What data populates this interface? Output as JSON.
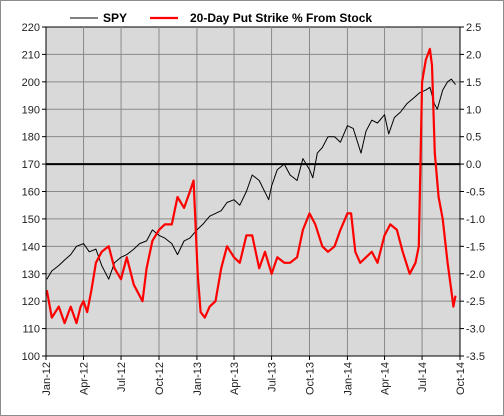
{
  "chart_data": {
    "type": "line",
    "title": "",
    "xlabel": "",
    "ylabel": "",
    "y2label": "",
    "ylim": [
      100,
      220
    ],
    "y2lim": [
      -3.5,
      2.5
    ],
    "yticks": [
      100,
      110,
      120,
      130,
      140,
      150,
      160,
      170,
      180,
      190,
      200,
      210,
      220
    ],
    "y2ticks": [
      -3.5,
      -3.0,
      -2.5,
      -2.0,
      -1.5,
      -1.0,
      -0.5,
      0.0,
      0.5,
      1.0,
      1.5,
      2.0,
      2.5
    ],
    "y2tick_labels": [
      "-3.5",
      "-3.0",
      "-2.5",
      "-2.0",
      "-1.5",
      "-1.0",
      "-0.5",
      "0.0",
      "0.5",
      "1.0",
      "1.5",
      "2.0",
      "2.5"
    ],
    "xlim": [
      "2012-01-01",
      "2014-10-01"
    ],
    "xticks": [
      {
        "date": "2012-01-01",
        "label": "Jan-12"
      },
      {
        "date": "2012-04-01",
        "label": "Apr-12"
      },
      {
        "date": "2012-07-01",
        "label": "Jul-12"
      },
      {
        "date": "2012-10-01",
        "label": "Oct-12"
      },
      {
        "date": "2013-01-01",
        "label": "Jan-13"
      },
      {
        "date": "2013-04-01",
        "label": "Apr-13"
      },
      {
        "date": "2013-07-01",
        "label": "Jul-13"
      },
      {
        "date": "2013-10-01",
        "label": "Oct-13"
      },
      {
        "date": "2014-01-01",
        "label": "Jan-14"
      },
      {
        "date": "2014-04-01",
        "label": "Apr-14"
      },
      {
        "date": "2014-07-01",
        "label": "Jul-14"
      },
      {
        "date": "2014-10-01",
        "label": "Oct-14"
      }
    ],
    "grid": true,
    "legend_position": "top",
    "reference_line": {
      "axis": "y2",
      "value": 0.0
    },
    "series": [
      {
        "name": "SPY",
        "axis": "y",
        "color": "#000000",
        "points": [
          [
            "2012-01-03",
            128
          ],
          [
            "2012-01-15",
            131
          ],
          [
            "2012-02-01",
            133
          ],
          [
            "2012-02-15",
            135
          ],
          [
            "2012-03-01",
            137
          ],
          [
            "2012-03-15",
            140
          ],
          [
            "2012-04-01",
            141
          ],
          [
            "2012-04-15",
            138
          ],
          [
            "2012-05-01",
            139
          ],
          [
            "2012-05-15",
            133
          ],
          [
            "2012-06-01",
            128
          ],
          [
            "2012-06-15",
            134
          ],
          [
            "2012-07-01",
            136
          ],
          [
            "2012-07-15",
            137
          ],
          [
            "2012-08-01",
            139
          ],
          [
            "2012-08-15",
            141
          ],
          [
            "2012-09-01",
            142
          ],
          [
            "2012-09-15",
            146
          ],
          [
            "2012-10-01",
            144
          ],
          [
            "2012-10-15",
            143
          ],
          [
            "2012-11-01",
            141
          ],
          [
            "2012-11-15",
            137
          ],
          [
            "2012-12-01",
            142
          ],
          [
            "2012-12-15",
            143
          ],
          [
            "2013-01-01",
            146
          ],
          [
            "2013-01-15",
            148
          ],
          [
            "2013-02-01",
            151
          ],
          [
            "2013-02-15",
            152
          ],
          [
            "2013-03-01",
            153
          ],
          [
            "2013-03-15",
            156
          ],
          [
            "2013-04-01",
            157
          ],
          [
            "2013-04-15",
            155
          ],
          [
            "2013-05-01",
            160
          ],
          [
            "2013-05-15",
            166
          ],
          [
            "2013-06-01",
            164
          ],
          [
            "2013-06-24",
            157
          ],
          [
            "2013-07-01",
            162
          ],
          [
            "2013-07-15",
            168
          ],
          [
            "2013-08-01",
            170
          ],
          [
            "2013-08-15",
            166
          ],
          [
            "2013-09-01",
            164
          ],
          [
            "2013-09-15",
            172
          ],
          [
            "2013-10-01",
            168
          ],
          [
            "2013-10-09",
            165
          ],
          [
            "2013-10-20",
            174
          ],
          [
            "2013-11-01",
            176
          ],
          [
            "2013-11-15",
            180
          ],
          [
            "2013-12-01",
            180
          ],
          [
            "2013-12-15",
            178
          ],
          [
            "2014-01-01",
            184
          ],
          [
            "2014-01-15",
            183
          ],
          [
            "2014-02-03",
            174
          ],
          [
            "2014-02-15",
            182
          ],
          [
            "2014-03-01",
            186
          ],
          [
            "2014-03-15",
            185
          ],
          [
            "2014-04-01",
            188
          ],
          [
            "2014-04-11",
            181
          ],
          [
            "2014-04-25",
            187
          ],
          [
            "2014-05-10",
            189
          ],
          [
            "2014-05-25",
            192
          ],
          [
            "2014-06-10",
            194
          ],
          [
            "2014-06-25",
            196
          ],
          [
            "2014-07-10",
            197
          ],
          [
            "2014-07-20",
            198
          ],
          [
            "2014-07-31",
            192
          ],
          [
            "2014-08-07",
            190
          ],
          [
            "2014-08-20",
            197
          ],
          [
            "2014-09-01",
            200
          ],
          [
            "2014-09-10",
            201
          ],
          [
            "2014-09-20",
            199
          ]
        ]
      },
      {
        "name": "20-Day Put Strike % From Stock",
        "axis": "y2",
        "color": "#ff0000",
        "points": [
          [
            "2012-01-03",
            -2.3
          ],
          [
            "2012-01-15",
            -2.8
          ],
          [
            "2012-02-01",
            -2.6
          ],
          [
            "2012-02-15",
            -2.9
          ],
          [
            "2012-03-01",
            -2.6
          ],
          [
            "2012-03-15",
            -2.9
          ],
          [
            "2012-03-25",
            -2.6
          ],
          [
            "2012-04-01",
            -2.5
          ],
          [
            "2012-04-10",
            -2.7
          ],
          [
            "2012-04-20",
            -2.3
          ],
          [
            "2012-05-01",
            -1.8
          ],
          [
            "2012-05-15",
            -1.6
          ],
          [
            "2012-06-01",
            -1.5
          ],
          [
            "2012-06-15",
            -1.9
          ],
          [
            "2012-07-01",
            -2.1
          ],
          [
            "2012-07-15",
            -1.7
          ],
          [
            "2012-08-01",
            -2.2
          ],
          [
            "2012-08-15",
            -2.4
          ],
          [
            "2012-08-22",
            -2.5
          ],
          [
            "2012-09-01",
            -1.9
          ],
          [
            "2012-09-15",
            -1.4
          ],
          [
            "2012-10-01",
            -1.2
          ],
          [
            "2012-10-15",
            -1.1
          ],
          [
            "2012-11-01",
            -1.1
          ],
          [
            "2012-11-15",
            -0.6
          ],
          [
            "2012-12-01",
            -0.8
          ],
          [
            "2012-12-15",
            -0.5
          ],
          [
            "2012-12-24",
            -0.3
          ],
          [
            "2013-01-03",
            -2.0
          ],
          [
            "2013-01-10",
            -2.7
          ],
          [
            "2013-01-20",
            -2.8
          ],
          [
            "2013-02-01",
            -2.6
          ],
          [
            "2013-02-15",
            -2.5
          ],
          [
            "2013-03-01",
            -1.9
          ],
          [
            "2013-03-15",
            -1.5
          ],
          [
            "2013-04-01",
            -1.7
          ],
          [
            "2013-04-15",
            -1.8
          ],
          [
            "2013-05-01",
            -1.3
          ],
          [
            "2013-05-15",
            -1.3
          ],
          [
            "2013-06-01",
            -1.9
          ],
          [
            "2013-06-15",
            -1.6
          ],
          [
            "2013-07-01",
            -2.0
          ],
          [
            "2013-07-15",
            -1.7
          ],
          [
            "2013-08-01",
            -1.8
          ],
          [
            "2013-08-15",
            -1.8
          ],
          [
            "2013-09-01",
            -1.7
          ],
          [
            "2013-09-15",
            -1.2
          ],
          [
            "2013-10-01",
            -0.9
          ],
          [
            "2013-10-15",
            -1.1
          ],
          [
            "2013-11-01",
            -1.5
          ],
          [
            "2013-11-15",
            -1.6
          ],
          [
            "2013-12-01",
            -1.5
          ],
          [
            "2013-12-15",
            -1.2
          ],
          [
            "2014-01-01",
            -0.9
          ],
          [
            "2014-01-10",
            -0.9
          ],
          [
            "2014-01-20",
            -1.6
          ],
          [
            "2014-02-01",
            -1.8
          ],
          [
            "2014-02-15",
            -1.7
          ],
          [
            "2014-03-01",
            -1.6
          ],
          [
            "2014-03-15",
            -1.8
          ],
          [
            "2014-04-01",
            -1.3
          ],
          [
            "2014-04-15",
            -1.1
          ],
          [
            "2014-05-01",
            -1.2
          ],
          [
            "2014-05-15",
            -1.6
          ],
          [
            "2014-06-01",
            -2.0
          ],
          [
            "2014-06-15",
            -1.8
          ],
          [
            "2014-06-23",
            -1.5
          ],
          [
            "2014-07-01",
            1.5
          ],
          [
            "2014-07-10",
            1.9
          ],
          [
            "2014-07-20",
            2.1
          ],
          [
            "2014-07-25",
            1.8
          ],
          [
            "2014-08-01",
            0.2
          ],
          [
            "2014-08-10",
            -0.6
          ],
          [
            "2014-08-20",
            -1.0
          ],
          [
            "2014-09-01",
            -1.8
          ],
          [
            "2014-09-10",
            -2.3
          ],
          [
            "2014-09-15",
            -2.6
          ],
          [
            "2014-09-20",
            -2.4
          ]
        ]
      }
    ]
  }
}
